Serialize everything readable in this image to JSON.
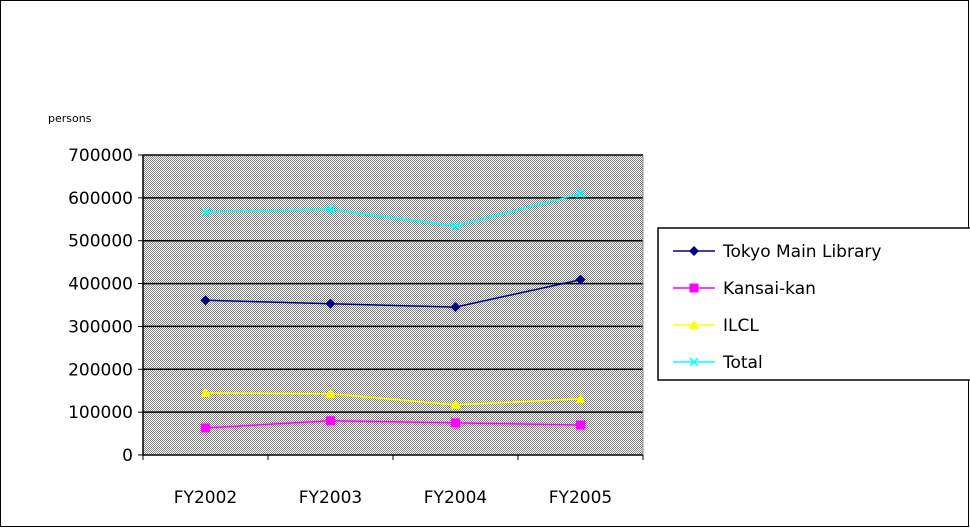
{
  "chart_data": {
    "type": "line",
    "title": "",
    "unit_label": "persons",
    "xlabel": "",
    "ylabel": "",
    "categories": [
      "FY2002",
      "FY2003",
      "FY2004",
      "FY2005"
    ],
    "y_ticks": [
      "0",
      "100000",
      "200000",
      "300000",
      "400000",
      "500000",
      "600000",
      "700000"
    ],
    "ylim": [
      0,
      700000
    ],
    "grid": true,
    "legend_position": "right",
    "plot_background": "#c0c0c0",
    "series": [
      {
        "name": "Tokyo Main Library",
        "color": "#000080",
        "marker": "diamond",
        "values": [
          361000,
          353000,
          345000,
          409000
        ]
      },
      {
        "name": "Kansai-kan",
        "color": "#ff00ff",
        "marker": "square",
        "values": [
          63000,
          80000,
          75000,
          70000
        ]
      },
      {
        "name": "ILCL",
        "color": "#ffff00",
        "marker": "triangle",
        "values": [
          145000,
          143000,
          117000,
          131000
        ]
      },
      {
        "name": "Total",
        "color": "#00ffff",
        "marker": "x",
        "values": [
          567000,
          573000,
          534000,
          610000
        ]
      }
    ]
  }
}
